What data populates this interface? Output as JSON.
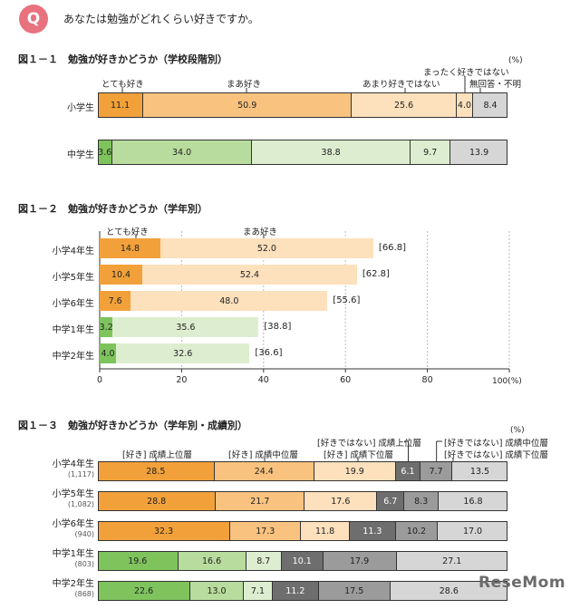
{
  "header": {
    "q_icon": "Q",
    "question": "あなたは勉強がどれくらい好きですか。"
  },
  "colors": {
    "orange_dark": "#f2a13a",
    "orange_mid": "#f9c37f",
    "orange_light": "#fde0bc",
    "green_dark": "#7fc35d",
    "green_mid": "#b7dc9d",
    "green_light": "#ddeed0",
    "gray_dark": "#6e6e6e",
    "gray_mid": "#9b9b9b",
    "gray_light": "#d6d6d6"
  },
  "chart_data": [
    {
      "type": "bar",
      "stacked": true,
      "orientation": "horizontal",
      "title": "図１－１　勉強が好きかどうか（学校段階別）",
      "unit": "(%)",
      "categories": [
        "小学生",
        "中学生"
      ],
      "series": [
        {
          "name": "とても好き",
          "values": [
            11.1,
            3.6
          ]
        },
        {
          "name": "まあ好き",
          "values": [
            50.9,
            34.0
          ]
        },
        {
          "name": "あまり好きではない",
          "values": [
            25.6,
            38.8
          ]
        },
        {
          "name": "まったく好きではない",
          "values": [
            4.0,
            9.7
          ]
        },
        {
          "name": "無回答・不明",
          "values": [
            8.4,
            13.9
          ]
        }
      ],
      "value_labels": [
        [
          "11.1",
          "50.9",
          "25.6",
          "4.0",
          "8.4"
        ],
        [
          "3.6",
          "34.0",
          "38.8",
          "9.7",
          "13.9"
        ]
      ],
      "series_colors": [
        [
          "orange_dark",
          "orange_mid",
          "orange_light",
          "orange_light",
          "gray_light"
        ],
        [
          "green_dark",
          "green_mid",
          "green_light",
          "green_light",
          "gray_light"
        ]
      ]
    },
    {
      "type": "bar",
      "orientation": "horizontal",
      "stacked": true,
      "title": "図１－２　勉強が好きかどうか（学年別）",
      "unit": "100(%)",
      "categories": [
        "小学4年生",
        "小学5年生",
        "小学6年生",
        "中学1年生",
        "中学2年生"
      ],
      "series": [
        {
          "name": "とても好き",
          "values": [
            14.8,
            10.4,
            7.6,
            3.2,
            4.0
          ]
        },
        {
          "name": "まあ好き",
          "values": [
            52.0,
            52.4,
            48.0,
            35.6,
            32.6
          ]
        }
      ],
      "value_labels": [
        [
          "14.8",
          "52.0"
        ],
        [
          "10.4",
          "52.4"
        ],
        [
          "7.6",
          "48.0"
        ],
        [
          "3.2",
          "35.6"
        ],
        [
          "4.0",
          "32.6"
        ]
      ],
      "totals": [
        "[66.8]",
        "[62.8]",
        "[55.6]",
        "[38.8]",
        "[36.6]"
      ],
      "total_values": [
        66.8,
        62.8,
        55.6,
        38.8,
        36.6
      ],
      "xlim": [
        0,
        100
      ],
      "xticks": [
        "0",
        "20",
        "40",
        "60",
        "80"
      ],
      "xtick_values": [
        0,
        20,
        40,
        60,
        80
      ]
    },
    {
      "type": "bar",
      "stacked": true,
      "orientation": "horizontal",
      "title": "図１－３　勉強が好きかどうか（学年別・成績別）",
      "unit": "(%)",
      "categories": [
        "小学4年生",
        "小学5年生",
        "小学6年生",
        "中学1年生",
        "中学2年生"
      ],
      "category_n": [
        "(1,117)",
        "(1,082)",
        "(940)",
        "(803)",
        "(868)"
      ],
      "series": [
        {
          "name": "[好き] 成績上位層",
          "values": [
            28.5,
            28.8,
            32.3,
            19.6,
            22.6
          ]
        },
        {
          "name": "[好き] 成績中位層",
          "values": [
            24.4,
            21.7,
            17.3,
            16.6,
            13.0
          ]
        },
        {
          "name": "[好き] 成績下位層",
          "values": [
            19.9,
            17.6,
            11.8,
            8.7,
            7.1
          ]
        },
        {
          "name": "[好きではない] 成績上位層",
          "values": [
            6.1,
            6.7,
            11.3,
            10.1,
            11.2
          ]
        },
        {
          "name": "[好きではない] 成績中位層",
          "values": [
            7.7,
            8.3,
            10.2,
            17.9,
            17.5
          ]
        },
        {
          "name": "[好きではない] 成績下位層",
          "values": [
            13.5,
            16.8,
            17.0,
            27.1,
            28.6
          ]
        }
      ],
      "value_labels": [
        [
          "28.5",
          "24.4",
          "19.9",
          "6.1",
          "7.7",
          "13.5"
        ],
        [
          "28.8",
          "21.7",
          "17.6",
          "6.7",
          "8.3",
          "16.8"
        ],
        [
          "32.3",
          "17.3",
          "11.8",
          "11.3",
          "10.2",
          "17.0"
        ],
        [
          "19.6",
          "16.6",
          "8.7",
          "10.1",
          "17.9",
          "27.1"
        ],
        [
          "22.6",
          "13.0",
          "7.1",
          "11.2",
          "17.5",
          "28.6"
        ]
      ]
    }
  ],
  "watermark": "ReseMom"
}
